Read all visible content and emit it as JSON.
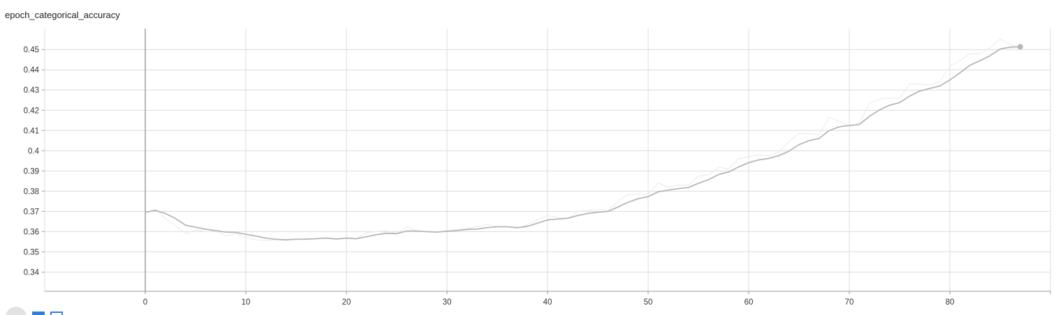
{
  "chart_data": {
    "type": "line",
    "title": "epoch_categorical_accuracy",
    "xlabel": "",
    "ylabel": "",
    "xlim": [
      -10,
      90
    ],
    "ylim": [
      0.3305,
      0.4604
    ],
    "x_ticks": [
      0,
      10,
      20,
      30,
      40,
      50,
      60,
      70,
      80
    ],
    "y_ticks": [
      0.34,
      0.35,
      0.36,
      0.37,
      0.38,
      0.39,
      0.4,
      0.41,
      0.42,
      0.43,
      0.44,
      0.45
    ],
    "x_tick_labels": [
      "0",
      "10",
      "20",
      "30",
      "40",
      "50",
      "60",
      "70",
      "80"
    ],
    "y_tick_labels": [
      "0.34",
      "0.35",
      "0.36",
      "0.37",
      "0.38",
      "0.39",
      "0.4",
      "0.41",
      "0.42",
      "0.43",
      "0.44",
      "0.45"
    ],
    "grid": true,
    "legend": "none",
    "series": [
      {
        "name": "raw",
        "color": "#ededed",
        "x": [
          0,
          1,
          2,
          3,
          4,
          5,
          6,
          7,
          8,
          9,
          10,
          11,
          12,
          13,
          14,
          15,
          16,
          17,
          18,
          19,
          20,
          21,
          22,
          23,
          24,
          25,
          26,
          27,
          28,
          29,
          30,
          31,
          32,
          33,
          34,
          35,
          36,
          37,
          38,
          39,
          40,
          41,
          42,
          43,
          44,
          45,
          46,
          47,
          48,
          49,
          50,
          51,
          52,
          53,
          54,
          55,
          56,
          57,
          58,
          59,
          60,
          61,
          62,
          63,
          64,
          65,
          66,
          67,
          68,
          69,
          70,
          71,
          72,
          73,
          74,
          75,
          76,
          77,
          78,
          79,
          80,
          81,
          82,
          83,
          84,
          85,
          86,
          87
        ],
        "values": [
          0.3695,
          0.371,
          0.3665,
          0.363,
          0.359,
          0.361,
          0.36,
          0.3605,
          0.358,
          0.359,
          0.357,
          0.356,
          0.3555,
          0.356,
          0.3555,
          0.3565,
          0.356,
          0.3565,
          0.357,
          0.356,
          0.357,
          0.3565,
          0.3595,
          0.36,
          0.3605,
          0.359,
          0.3625,
          0.3605,
          0.36,
          0.3595,
          0.3605,
          0.361,
          0.3615,
          0.3625,
          0.3635,
          0.3625,
          0.3625,
          0.3615,
          0.3635,
          0.366,
          0.368,
          0.367,
          0.3665,
          0.37,
          0.3705,
          0.371,
          0.3705,
          0.375,
          0.3785,
          0.3785,
          0.3785,
          0.384,
          0.382,
          0.383,
          0.383,
          0.3875,
          0.388,
          0.392,
          0.391,
          0.396,
          0.397,
          0.398,
          0.3975,
          0.3995,
          0.4045,
          0.4085,
          0.4085,
          0.408,
          0.4165,
          0.4145,
          0.412,
          0.4135,
          0.4235,
          0.4255,
          0.426,
          0.426,
          0.433,
          0.433,
          0.4325,
          0.434,
          0.442,
          0.4445,
          0.448,
          0.448,
          0.451,
          0.4553,
          0.4525,
          0.451
        ]
      },
      {
        "name": "smoothed",
        "color": "#b7b7b7",
        "x": [
          0,
          1,
          2,
          3,
          4,
          5,
          6,
          7,
          8,
          9,
          10,
          11,
          12,
          13,
          14,
          15,
          16,
          17,
          18,
          19,
          20,
          21,
          22,
          23,
          24,
          25,
          26,
          27,
          28,
          29,
          30,
          31,
          32,
          33,
          34,
          35,
          36,
          37,
          38,
          39,
          40,
          41,
          42,
          43,
          44,
          45,
          46,
          47,
          48,
          49,
          50,
          51,
          52,
          53,
          54,
          55,
          56,
          57,
          58,
          59,
          60,
          61,
          62,
          63,
          64,
          65,
          66,
          67,
          68,
          69,
          70,
          71,
          72,
          73,
          74,
          75,
          76,
          77,
          78,
          79,
          80,
          81,
          82,
          83,
          84,
          85,
          86,
          87
        ],
        "values": [
          0.3695,
          0.3705,
          0.369,
          0.3665,
          0.3632,
          0.3622,
          0.3612,
          0.3605,
          0.3598,
          0.3596,
          0.3587,
          0.3578,
          0.3568,
          0.3562,
          0.356,
          0.3562,
          0.3563,
          0.3565,
          0.3568,
          0.3564,
          0.3568,
          0.3565,
          0.3575,
          0.3585,
          0.3592,
          0.359,
          0.3603,
          0.3603,
          0.36,
          0.3598,
          0.3602,
          0.3605,
          0.3611,
          0.3613,
          0.362,
          0.3624,
          0.3624,
          0.362,
          0.3626,
          0.3642,
          0.3658,
          0.3662,
          0.3666,
          0.368,
          0.369,
          0.3696,
          0.37,
          0.3722,
          0.3745,
          0.3763,
          0.3773,
          0.3797,
          0.3805,
          0.3813,
          0.3818,
          0.3839,
          0.3857,
          0.3882,
          0.3895,
          0.392,
          0.3941,
          0.3955,
          0.3962,
          0.3976,
          0.3998,
          0.403,
          0.405,
          0.4061,
          0.41,
          0.4118,
          0.4125,
          0.413,
          0.417,
          0.4202,
          0.4225,
          0.4238,
          0.427,
          0.4295,
          0.4308,
          0.432,
          0.435,
          0.4385,
          0.4423,
          0.4445,
          0.447,
          0.4503,
          0.4512,
          0.4514
        ]
      }
    ]
  },
  "toolbar": {
    "buttons": [
      {
        "name": "expand-button",
        "icon": "expand-icon"
      },
      {
        "name": "toggle-log-button",
        "icon": "log-scale-icon"
      },
      {
        "name": "fit-domain-button",
        "icon": "fit-domain-icon"
      }
    ]
  },
  "colors": {
    "grid": "#dcdcdc",
    "axis": "#999999",
    "zero_line": "#9e9e9e",
    "raw_line": "#ededed",
    "smoothed_line": "#b7b7b7",
    "endpoint": "#b7b7b7",
    "accent": "#2f7fd8"
  }
}
